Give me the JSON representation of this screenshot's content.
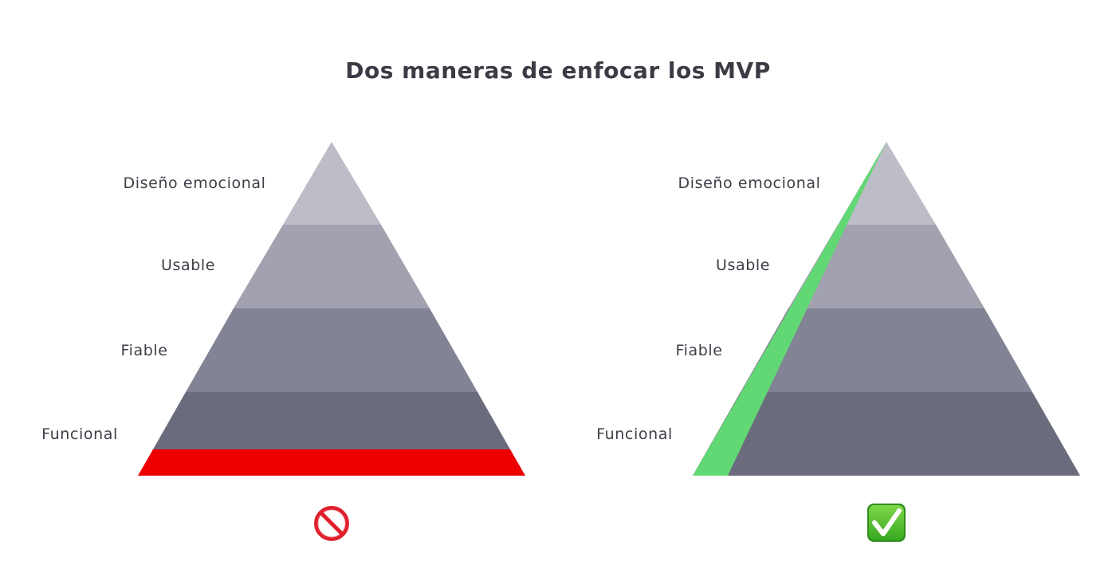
{
  "title": "Dos maneras de enfocar los MVP",
  "levels": [
    "Diseño emocional",
    "Usable",
    "Fiable",
    "Funcional"
  ],
  "pyramids": [
    {
      "approach": "wrong",
      "highlight": "base-strip",
      "highlight_color": "#ee0000",
      "verdict_icon": "prohibited-icon"
    },
    {
      "approach": "right",
      "highlight": "diagonal-slice",
      "highlight_color": "#62d874",
      "verdict_icon": "check-mark-button-icon"
    }
  ],
  "colors": {
    "level_1": "#bdbdc7",
    "level_2": "#a2a1b0",
    "level_3": "#838396",
    "level_4": "#6b6b7e",
    "label_text": "#3e3e48",
    "title_text": "#3b3b45"
  }
}
